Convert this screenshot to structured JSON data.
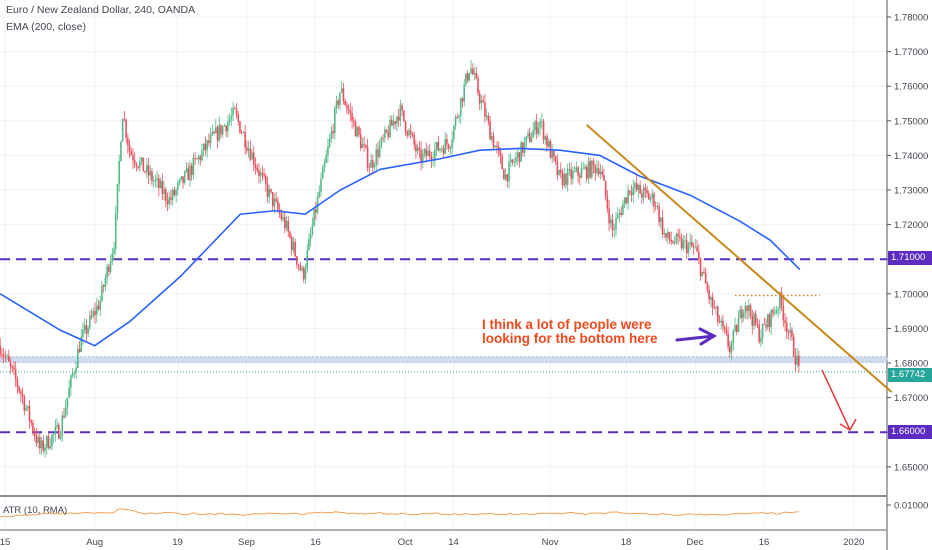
{
  "header": {
    "symbol_title": "Euro / New Zealand Dollar, 240, OANDA",
    "indicator_label": "EMA (200, close)"
  },
  "atr": {
    "label": "ATR (10, RMA)",
    "axis_label": "0.01000"
  },
  "annotation": {
    "text_line1": "I think a lot of people were",
    "text_line2": "looking for the bottom here"
  },
  "price_labels": {
    "level_high": "1.71000",
    "level_low": "1.66000",
    "current": "1.67742"
  },
  "colors": {
    "up": "#53b987",
    "down": "#eb4d5c",
    "ema": "#2962ff",
    "level": "#5b2cbf",
    "trend": "#c8891a",
    "current": "#26a69a",
    "annotation": "#ef4a1e",
    "atr": "#f5a15a"
  },
  "chart_data": {
    "type": "candlestick",
    "title": "Euro / New Zealand Dollar, 240, OANDA",
    "x_unit": "trading days since Jul 15",
    "x_ticks": [
      {
        "label": "15",
        "t": 0
      },
      {
        "label": "Aug",
        "t": 13
      },
      {
        "label": "19",
        "t": 25
      },
      {
        "label": "Sep",
        "t": 35
      },
      {
        "label": "16",
        "t": 45
      },
      {
        "label": "Oct",
        "t": 58
      },
      {
        "label": "14",
        "t": 65
      },
      {
        "label": "Nov",
        "t": 79
      },
      {
        "label": "18",
        "t": 90
      },
      {
        "label": "Dec",
        "t": 100
      },
      {
        "label": "16",
        "t": 110
      },
      {
        "label": "2020",
        "t": 123
      }
    ],
    "y_ticks": [
      "1.78000",
      "1.77000",
      "1.76000",
      "1.75000",
      "1.74000",
      "1.73000",
      "1.72000",
      "1.71000",
      "1.70000",
      "1.69000",
      "1.68000",
      "1.67000",
      "1.66000",
      "1.65000"
    ],
    "ylim": [
      1.645,
      1.7829
    ],
    "price_path": [
      [
        -0.7,
        1.685
      ],
      [
        2.2,
        1.672
      ],
      [
        5.1,
        1.655
      ],
      [
        8,
        1.661
      ],
      [
        10.9,
        1.686
      ],
      [
        13.8,
        1.698
      ],
      [
        15.9,
        1.716
      ],
      [
        17,
        1.753
      ],
      [
        18.1,
        1.741
      ],
      [
        23.9,
        1.727
      ],
      [
        29.7,
        1.744
      ],
      [
        33.3,
        1.752
      ],
      [
        37.7,
        1.731
      ],
      [
        40.6,
        1.72
      ],
      [
        43.2,
        1.705
      ],
      [
        44.9,
        1.723
      ],
      [
        48.6,
        1.759
      ],
      [
        52.9,
        1.737
      ],
      [
        57.2,
        1.753
      ],
      [
        60.1,
        1.739
      ],
      [
        64.5,
        1.744
      ],
      [
        67.4,
        1.766
      ],
      [
        70.3,
        1.747
      ],
      [
        72.5,
        1.734
      ],
      [
        77.5,
        1.75
      ],
      [
        80.4,
        1.733
      ],
      [
        86.2,
        1.737
      ],
      [
        88,
        1.718
      ],
      [
        90.6,
        1.731
      ],
      [
        94.2,
        1.727
      ],
      [
        95.7,
        1.716
      ],
      [
        100,
        1.713
      ],
      [
        102.2,
        1.698
      ],
      [
        105.1,
        1.684
      ],
      [
        107.2,
        1.698
      ],
      [
        109.4,
        1.688
      ],
      [
        112.3,
        1.698
      ],
      [
        115.2,
        1.6774
      ]
    ],
    "ema_200": [
      [
        -0.7,
        1.7
      ],
      [
        8,
        1.6895
      ],
      [
        13,
        1.685
      ],
      [
        18.1,
        1.692
      ],
      [
        25.4,
        1.705
      ],
      [
        34.1,
        1.723
      ],
      [
        39.1,
        1.724
      ],
      [
        43.5,
        1.723
      ],
      [
        48.6,
        1.73
      ],
      [
        54.4,
        1.736
      ],
      [
        63,
        1.739
      ],
      [
        68.8,
        1.7415
      ],
      [
        74.6,
        1.742
      ],
      [
        80.4,
        1.7415
      ],
      [
        86.2,
        1.74
      ],
      [
        92,
        1.734
      ],
      [
        99.3,
        1.7285
      ],
      [
        106.5,
        1.721
      ],
      [
        110.9,
        1.7155
      ],
      [
        115.2,
        1.707
      ]
    ],
    "horizontal_levels": [
      1.71,
      1.66
    ],
    "support_zone": [
      1.6802,
      1.6818
    ],
    "current_price": 1.67742,
    "resistance_dotted": {
      "price": 1.6995,
      "from_t": 105.8,
      "to_t": 118.1
    },
    "trendline": {
      "from": [
        84.3,
        1.7488
      ],
      "to": [
        128.5,
        1.6716
      ]
    },
    "atr_series_hint": "ATR (10, RMA) around 0.004–0.010, spike early Aug and mid Sep"
  }
}
